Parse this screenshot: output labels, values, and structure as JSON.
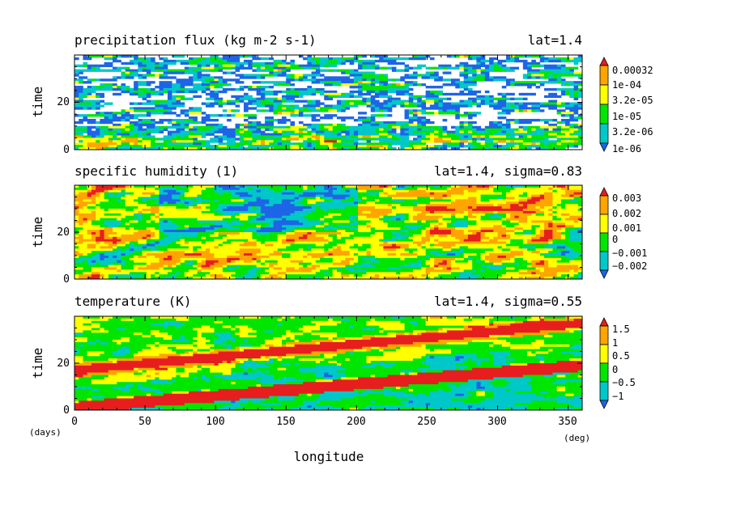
{
  "chart_data": {
    "type": "heatmap",
    "panels": [
      {
        "title": "precipitation flux (kg m-2 s-1)",
        "annotation": "lat=1.4",
        "ylabel": "time",
        "colorbar": {
          "labels": [
            "0.00032",
            "1e-04",
            "3.2e-05",
            "1e-05",
            "3.2e-06",
            "1e-06"
          ]
        }
      },
      {
        "title": "specific humidity (1)",
        "annotation": "lat=1.4, sigma=0.83",
        "ylabel": "time",
        "colorbar": {
          "labels": [
            "0.003",
            "0.002",
            "0.001",
            "0",
            "−0.001",
            "−0.002"
          ]
        }
      },
      {
        "title": "temperature (K)",
        "annotation": "lat=1.4, sigma=0.55",
        "ylabel": "time",
        "colorbar": {
          "labels": [
            "1.5",
            "1",
            "0.5",
            "0",
            "−0.5",
            "−1"
          ]
        }
      }
    ],
    "xlabel": "longitude",
    "xunit": "(deg)",
    "yunit": "(days)",
    "xlim": [
      0,
      360
    ],
    "ylim": [
      0,
      40
    ],
    "xticks": [
      "0",
      "50",
      "100",
      "150",
      "200",
      "250",
      "300",
      "350"
    ],
    "yticks": [
      "0",
      "20"
    ],
    "palette": [
      "#1e64e6",
      "#00c8c8",
      "#00e600",
      "#ffff00",
      "#ffa500",
      "#e61e1e"
    ]
  }
}
